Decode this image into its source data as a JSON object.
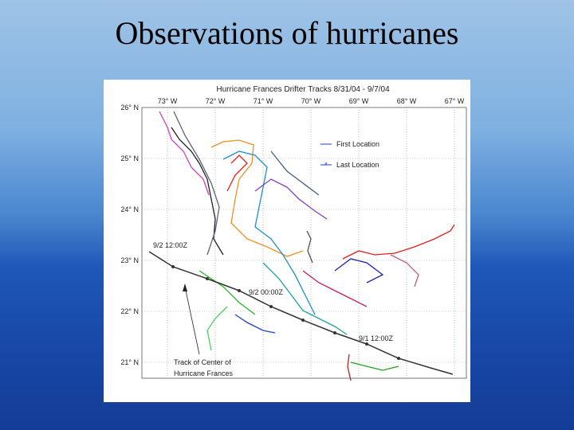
{
  "slide": {
    "title": "Observations of hurricanes"
  },
  "figure": {
    "title": "Hurricane Frances Drifter Tracks 8/31/04 - 9/7/04",
    "x_axis_labels": [
      "73° W",
      "72° W",
      "71° W",
      "70° W",
      "69° W",
      "68° W",
      "67° W"
    ],
    "y_axis_labels": [
      "26° N",
      "25° N",
      "24° N",
      "23° N",
      "22° N",
      "21° N"
    ],
    "legend": [
      "First Location",
      "Last Location"
    ],
    "annotations": [
      "9/2 12:00Z",
      "9/2 00:00Z",
      "9/1 12:00Z",
      "Track of Center of",
      "Hurricane Frances"
    ]
  }
}
